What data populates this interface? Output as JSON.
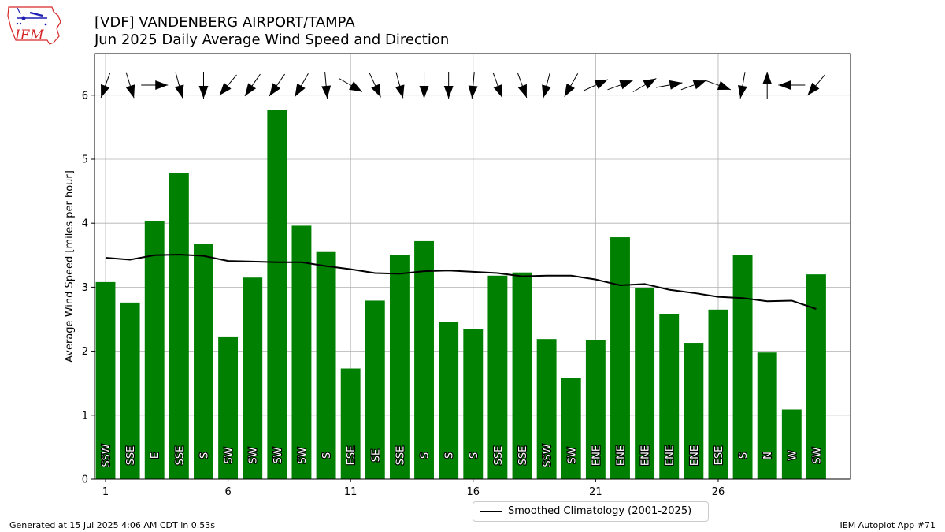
{
  "title_line1": "[VDF] VANDENBERG AIRPORT/TAMPA",
  "title_line2": "Jun 2025 Daily Average Wind Speed and Direction",
  "logo_text": "IEM",
  "footer_left": "Generated at 15 Jul 2025 4:06 AM CDT in 0.53s",
  "footer_right": "IEM Autoplot App #71",
  "colors": {
    "bar": "#008000",
    "line": "#000000",
    "grid": "#b0b0b0",
    "logo": "#d62728"
  },
  "chart_data": {
    "type": "bar",
    "ylabel": "Average Wind Speed [miles per hour]",
    "xlabel": "",
    "ylim": [
      0,
      6.65
    ],
    "xlim": [
      0.55,
      31.4
    ],
    "yticks": [
      0,
      1,
      2,
      3,
      4,
      5,
      6
    ],
    "xticks": [
      1,
      6,
      11,
      16,
      21,
      26
    ],
    "grid": true,
    "legend_position": "below-center",
    "days": [
      1,
      2,
      3,
      4,
      5,
      6,
      7,
      8,
      9,
      10,
      11,
      12,
      13,
      14,
      15,
      16,
      17,
      18,
      19,
      20,
      21,
      22,
      23,
      24,
      25,
      26,
      27,
      28,
      29,
      30
    ],
    "speed": [
      3.08,
      2.76,
      4.03,
      4.79,
      3.68,
      2.23,
      3.15,
      5.77,
      3.96,
      3.55,
      1.73,
      2.79,
      3.5,
      3.72,
      2.46,
      2.34,
      3.18,
      3.23,
      2.19,
      1.58,
      2.17,
      3.78,
      2.98,
      2.58,
      2.13,
      2.65,
      3.5,
      1.98,
      1.09,
      3.2
    ],
    "direction": [
      "SSW",
      "SSE",
      "E",
      "SSE",
      "S",
      "SW",
      "SW",
      "SW",
      "SW",
      "S",
      "ESE",
      "SE",
      "SSE",
      "S",
      "S",
      "S",
      "SSE",
      "SSE",
      "SSW",
      "SW",
      "ENE",
      "ENE",
      "ENE",
      "ENE",
      "ENE",
      "ESE",
      "S",
      "N",
      "W",
      "SW"
    ],
    "arrow_heading_deg": [
      200,
      163,
      90,
      165,
      180,
      220,
      215,
      215,
      210,
      175,
      120,
      155,
      165,
      180,
      180,
      185,
      160,
      160,
      195,
      210,
      65,
      70,
      60,
      80,
      70,
      110,
      190,
      360,
      270,
      220
    ],
    "series": [
      {
        "name": "Smoothed Climatology (2001-2025)",
        "type": "line",
        "values": [
          3.46,
          3.43,
          3.5,
          3.51,
          3.49,
          3.41,
          3.4,
          3.39,
          3.39,
          3.33,
          3.28,
          3.22,
          3.21,
          3.25,
          3.26,
          3.24,
          3.22,
          3.17,
          3.18,
          3.18,
          3.12,
          3.03,
          3.05,
          2.96,
          2.91,
          2.85,
          2.83,
          2.78,
          2.79,
          2.66
        ]
      }
    ]
  }
}
